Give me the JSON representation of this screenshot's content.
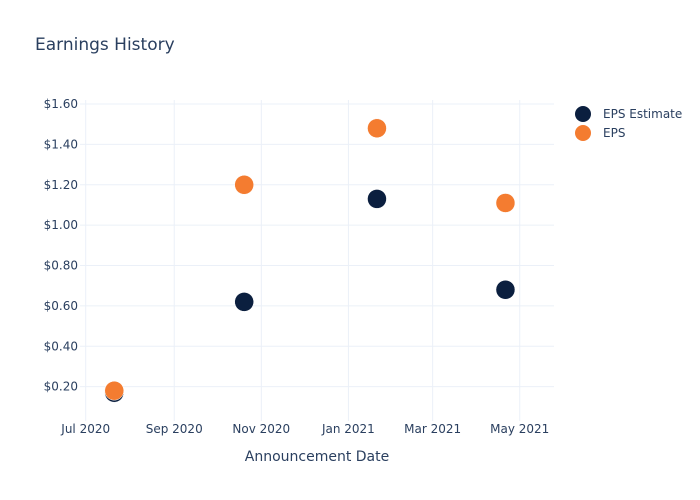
{
  "chart_data": {
    "type": "scatter",
    "title": "Earnings History",
    "xlabel": "Announcement Date",
    "ylabel": "",
    "x_ticks": [
      "2020-07-01",
      "2020-09-01",
      "2020-11-01",
      "2021-01-01",
      "2021-03-01",
      "2021-05-01"
    ],
    "x_tick_labels": [
      "Jul 2020",
      "Sep 2020",
      "Nov 2020",
      "Jan 2021",
      "Mar 2021",
      "May 2021"
    ],
    "xlim": [
      "2020-06-27",
      "2021-05-25"
    ],
    "y_ticks": [
      0.2,
      0.4,
      0.6,
      0.8,
      1.0,
      1.2,
      1.4,
      1.6
    ],
    "y_tick_labels": [
      "$0.20",
      "$0.40",
      "$0.60",
      "$0.80",
      "$1.00",
      "$1.20",
      "$1.40",
      "$1.60"
    ],
    "ylim": [
      0.03,
      1.62
    ],
    "grid": true,
    "legend_position": "top-right",
    "series": [
      {
        "name": "EPS Estimate",
        "color": "#0b1f3f",
        "points": [
          {
            "x": "2020-07-21",
            "y": 0.17
          },
          {
            "x": "2020-10-20",
            "y": 0.62
          },
          {
            "x": "2021-01-21",
            "y": 1.13
          },
          {
            "x": "2021-04-21",
            "y": 0.68
          }
        ]
      },
      {
        "name": "EPS",
        "color": "#f47c30",
        "points": [
          {
            "x": "2020-07-21",
            "y": 0.18
          },
          {
            "x": "2020-10-20",
            "y": 1.2
          },
          {
            "x": "2021-01-21",
            "y": 1.48
          },
          {
            "x": "2021-04-21",
            "y": 1.11
          }
        ]
      }
    ]
  }
}
